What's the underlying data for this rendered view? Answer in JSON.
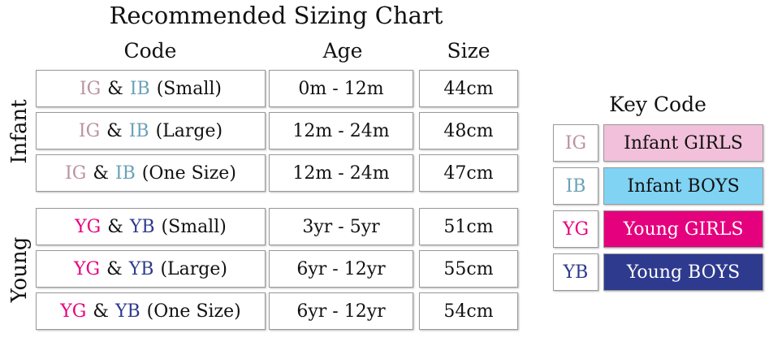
{
  "title": "Recommended Sizing Chart",
  "headers": [
    "Code",
    "Age",
    "Size"
  ],
  "groups": [
    {
      "label": "Infant",
      "rows": [
        {
          "code": [
            "IG",
            "&",
            "IB",
            "(Small)"
          ],
          "age": "0m - 12m",
          "size": "44cm"
        },
        {
          "code": [
            "IG",
            "&",
            "IB",
            "(Large)"
          ],
          "age": "12m - 24m",
          "size": "48cm"
        },
        {
          "code": [
            "IG",
            "&",
            "IB",
            "(One Size)"
          ],
          "age": "12m - 24m",
          "size": "47cm"
        }
      ]
    },
    {
      "label": "Young",
      "rows": [
        {
          "code": [
            "YG",
            "&",
            "YB",
            "(Small)"
          ],
          "age": "3yr - 5yr",
          "size": "51cm"
        },
        {
          "code": [
            "YG",
            "&",
            "YB",
            "(Large)"
          ],
          "age": "6yr - 12yr",
          "size": "55cm"
        },
        {
          "code": [
            "YG",
            "&",
            "YB",
            "(One Size)"
          ],
          "age": "6yr - 12yr",
          "size": "54cm"
        }
      ]
    }
  ],
  "key": {
    "title": "Key Code",
    "items": [
      {
        "code": "IG",
        "label": "Infant GIRLS"
      },
      {
        "code": "IB",
        "label": "Infant BOYS"
      },
      {
        "code": "YG",
        "label": "Young GIRLS"
      },
      {
        "code": "YB",
        "label": "Young BOYS"
      }
    ]
  }
}
